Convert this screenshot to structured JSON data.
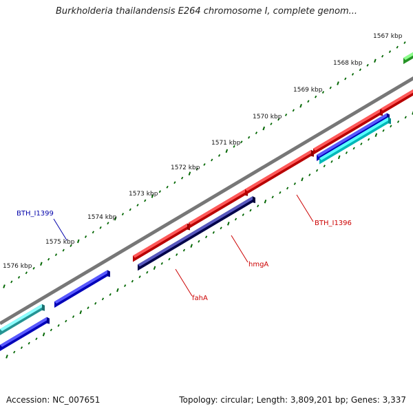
{
  "header": {
    "title": "Burkholderia thailandensis E264 chromosome I, complete genom..."
  },
  "footer": {
    "accession": "Accession: NC_007651",
    "summary": "Topology: circular; Length: 3,809,201 bp; Genes: 3,337"
  },
  "ruler": {
    "ticks": [
      "1567 kbp",
      "1568 kbp",
      "1569 kbp",
      "1570 kbp",
      "1571 kbp",
      "1572 kbp",
      "1573 kbp",
      "1574 kbp",
      "1575 kbp",
      "1576 kbp"
    ]
  },
  "gene_labels": [
    {
      "text": "BTH_I1399",
      "color": "#0000aa"
    },
    {
      "text": "BTH_I1396",
      "color": "#cc0000"
    },
    {
      "text": "hmgA",
      "color": "#cc0000"
    },
    {
      "text": "fahA",
      "color": "#cc0000"
    }
  ],
  "colors": {
    "red": "#ff0000",
    "blue": "#0000ff",
    "navy": "#000066",
    "teal": "#33cccc",
    "cyan": "#00ffff",
    "green": "#33cc33",
    "backbone": "#777777",
    "ticks": "#006600"
  }
}
